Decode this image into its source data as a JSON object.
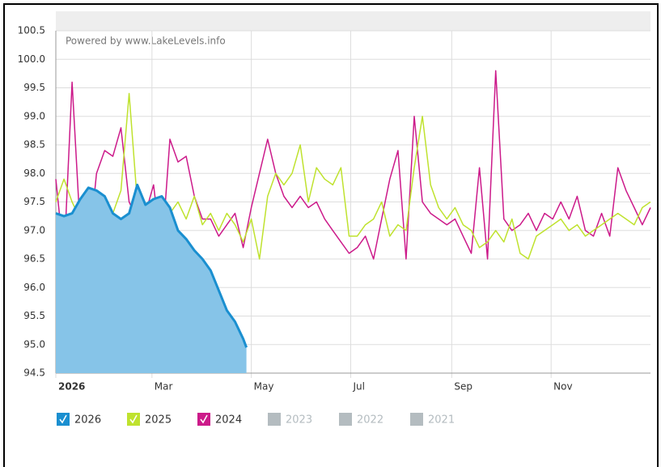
{
  "chart_data": {
    "type": "line",
    "watermark": "Powered by www.LakeLevels.info",
    "xlim": [
      0,
      365
    ],
    "xticks": [
      {
        "value": 0,
        "label": "2026"
      },
      {
        "value": 59,
        "label": "Mar"
      },
      {
        "value": 120,
        "label": "May"
      },
      {
        "value": 181,
        "label": "Jul"
      },
      {
        "value": 243,
        "label": "Sep"
      },
      {
        "value": 304,
        "label": "Nov"
      }
    ],
    "ylim": [
      94.5,
      100.5
    ],
    "yticks": [
      94.5,
      {
        "value": 95,
        "label": "95.0"
      },
      95.5,
      {
        "value": 96,
        "label": "96.0"
      },
      96.5,
      {
        "value": 97,
        "label": "97.0"
      },
      97.5,
      {
        "value": 98,
        "label": "98.0"
      },
      98.5,
      {
        "value": 99,
        "label": "99.0"
      },
      99.5,
      {
        "value": 100,
        "label": "100.0"
      },
      100.5
    ],
    "grid": true,
    "series": [
      {
        "name": "2024",
        "color": "#cc1a8a",
        "x": [
          0,
          5,
          10,
          15,
          20,
          25,
          30,
          35,
          40,
          45,
          50,
          55,
          60,
          65,
          70,
          75,
          80,
          85,
          90,
          95,
          100,
          105,
          110,
          115,
          120,
          125,
          130,
          135,
          140,
          145,
          150,
          155,
          160,
          165,
          170,
          175,
          180,
          185,
          190,
          195,
          200,
          205,
          210,
          215,
          220,
          225,
          230,
          235,
          240,
          245,
          250,
          255,
          260,
          265,
          270,
          275,
          280,
          285,
          290,
          295,
          300,
          305,
          310,
          315,
          320,
          325,
          330,
          335,
          340,
          345,
          350,
          355,
          360,
          365
        ],
        "values": [
          97.9,
          96.5,
          99.6,
          97.0,
          96.6,
          98.0,
          98.4,
          98.3,
          98.8,
          97.5,
          97.2,
          97.3,
          97.8,
          96.6,
          98.6,
          98.2,
          98.3,
          97.6,
          97.2,
          97.2,
          96.9,
          97.1,
          97.3,
          96.7,
          97.4,
          98.0,
          98.6,
          98.0,
          97.6,
          97.4,
          97.6,
          97.4,
          97.5,
          97.2,
          97.0,
          96.8,
          96.6,
          96.7,
          96.9,
          96.5,
          97.2,
          97.9,
          98.4,
          96.5,
          99.0,
          97.5,
          97.3,
          97.2,
          97.1,
          97.2,
          96.9,
          96.6,
          98.1,
          96.5,
          99.8,
          97.2,
          97.0,
          97.1,
          97.3,
          97.0,
          97.3,
          97.2,
          97.5,
          97.2,
          97.6,
          97.0,
          96.9,
          97.3,
          96.9,
          98.1,
          97.7,
          97.4,
          97.1,
          97.4
        ]
      },
      {
        "name": "2025",
        "color": "#bfe22e",
        "x": [
          0,
          5,
          10,
          15,
          20,
          25,
          30,
          35,
          40,
          45,
          50,
          55,
          60,
          65,
          70,
          75,
          80,
          85,
          90,
          95,
          100,
          105,
          110,
          115,
          120,
          125,
          130,
          135,
          140,
          145,
          150,
          155,
          160,
          165,
          170,
          175,
          180,
          185,
          190,
          195,
          200,
          205,
          210,
          215,
          220,
          225,
          230,
          235,
          240,
          245,
          250,
          255,
          260,
          265,
          270,
          275,
          280,
          285,
          290,
          295,
          300,
          305,
          310,
          315,
          320,
          325,
          330,
          335,
          340,
          345,
          350,
          355,
          360,
          365
        ],
        "values": [
          97.5,
          97.9,
          97.5,
          97.2,
          96.9,
          97.2,
          97.1,
          97.3,
          97.7,
          99.4,
          97.5,
          97.3,
          97.0,
          97.6,
          97.3,
          97.5,
          97.2,
          97.6,
          97.1,
          97.3,
          97.0,
          97.3,
          97.1,
          96.8,
          97.2,
          96.5,
          97.6,
          98.0,
          97.8,
          98.0,
          98.5,
          97.5,
          98.1,
          97.9,
          97.8,
          98.1,
          96.9,
          96.9,
          97.1,
          97.2,
          97.5,
          96.9,
          97.1,
          97.0,
          98.1,
          99.0,
          97.8,
          97.4,
          97.2,
          97.4,
          97.1,
          97.0,
          96.7,
          96.8,
          97.0,
          96.8,
          97.2,
          96.6,
          96.5,
          96.9,
          97.0,
          97.1,
          97.2,
          97.0,
          97.1,
          96.9,
          97.0,
          97.1,
          97.2,
          97.3,
          97.2,
          97.1,
          97.4,
          97.5
        ]
      },
      {
        "name": "2026",
        "color": "#1a8fd0",
        "fill": "#86c4e8",
        "area": true,
        "x": [
          0,
          5,
          10,
          15,
          20,
          25,
          30,
          35,
          40,
          45,
          50,
          55,
          60,
          65,
          70,
          75,
          80,
          85,
          90,
          95,
          100,
          105,
          110,
          115,
          117
        ],
        "values": [
          97.3,
          97.25,
          97.3,
          97.55,
          97.75,
          97.7,
          97.6,
          97.3,
          97.2,
          97.3,
          97.8,
          97.45,
          97.55,
          97.6,
          97.4,
          97.0,
          96.85,
          96.65,
          96.5,
          96.3,
          95.95,
          95.6,
          95.4,
          95.1,
          94.95
        ]
      }
    ],
    "legend_order": [
      2,
      1,
      0
    ],
    "legend_inactive": {
      "names": [
        "2023",
        "2022",
        "2021"
      ],
      "color": "#b4bcc0"
    }
  }
}
